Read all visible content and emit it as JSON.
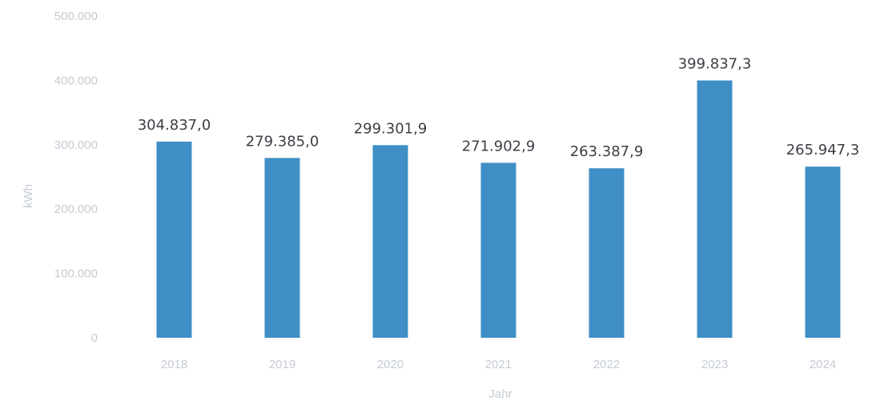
{
  "chart_data": {
    "type": "bar",
    "categories": [
      "2018",
      "2019",
      "2020",
      "2021",
      "2022",
      "2023",
      "2024"
    ],
    "values": [
      304837.0,
      279385.0,
      299301.9,
      271902.9,
      263387.9,
      399837.3,
      265947.3
    ],
    "data_labels": [
      "304.837,0",
      "279.385,0",
      "299.301,9",
      "271.902,9",
      "263.387,9",
      "399.837,3",
      "265.947,3"
    ],
    "xlabel": "Jahr",
    "ylabel": "kWh",
    "ylim": [
      0,
      500000
    ],
    "yticks": [
      0,
      100000,
      200000,
      300000,
      400000,
      500000
    ],
    "ytick_labels": [
      "0",
      "100.000",
      "200.000",
      "300.000",
      "400.000",
      "500.000"
    ],
    "grid": false,
    "colors": {
      "bar": "#3f8fc6"
    }
  }
}
